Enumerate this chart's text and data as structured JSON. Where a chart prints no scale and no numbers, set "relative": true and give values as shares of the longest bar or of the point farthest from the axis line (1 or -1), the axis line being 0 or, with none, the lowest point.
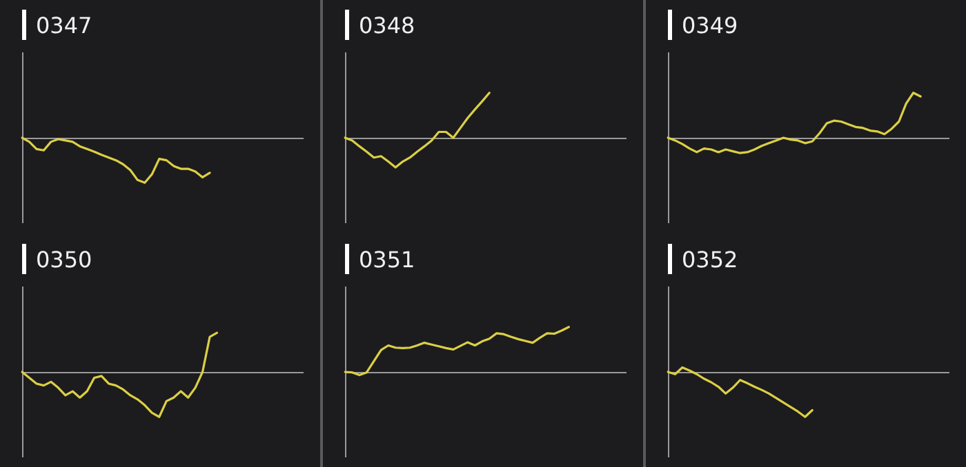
{
  "chart_data": [
    {
      "type": "line",
      "title": "0347",
      "relative": true,
      "marker": "none",
      "categories": [
        null,
        null,
        null,
        null,
        null,
        null,
        null,
        null,
        null,
        null,
        null,
        null,
        null,
        null,
        null,
        null,
        null,
        null,
        null,
        null,
        null,
        null,
        null,
        null,
        null,
        null,
        null,
        null,
        null,
        null,
        null,
        null,
        null,
        null,
        null,
        null,
        null,
        null,
        null,
        null
      ],
      "series": [
        {
          "color": "#dccf45",
          "values": [
            0,
            -0.09,
            -0.25,
            -0.28,
            -0.09,
            -0.03,
            -0.06,
            -0.09,
            -0.19,
            -0.25,
            -0.31,
            -0.38,
            -0.44,
            -0.5,
            -0.59,
            -0.72,
            -0.94,
            -1,
            -0.81,
            -0.47,
            -0.5,
            -0.63,
            -0.69,
            -0.69,
            -0.75,
            -0.88,
            -0.78,
            null,
            null,
            null,
            null,
            null,
            null,
            null,
            null,
            null,
            null,
            null,
            null,
            null
          ]
        }
      ]
    },
    {
      "type": "line",
      "title": "0348",
      "relative": true,
      "marker": "none",
      "categories": [
        null,
        null,
        null,
        null,
        null,
        null,
        null,
        null,
        null,
        null,
        null,
        null,
        null,
        null,
        null,
        null,
        null,
        null,
        null,
        null,
        null,
        null,
        null,
        null,
        null,
        null,
        null,
        null,
        null,
        null,
        null,
        null,
        null,
        null,
        null,
        null,
        null,
        null,
        null,
        null
      ],
      "series": [
        {
          "color": "#dccf45",
          "values": [
            0,
            -0.06,
            -0.19,
            -0.31,
            -0.44,
            -0.41,
            -0.53,
            -0.66,
            -0.53,
            -0.44,
            -0.31,
            -0.19,
            -0.06,
            0.13,
            0.13,
            0,
            0.22,
            0.44,
            0.63,
            0.81,
            1,
            null,
            null,
            null,
            null,
            null,
            null,
            null,
            null,
            null,
            null,
            null,
            null,
            null,
            null,
            null,
            null,
            null,
            null,
            null
          ]
        }
      ]
    },
    {
      "type": "line",
      "title": "0349",
      "relative": true,
      "marker": "none",
      "categories": [
        null,
        null,
        null,
        null,
        null,
        null,
        null,
        null,
        null,
        null,
        null,
        null,
        null,
        null,
        null,
        null,
        null,
        null,
        null,
        null,
        null,
        null,
        null,
        null,
        null,
        null,
        null,
        null,
        null,
        null,
        null,
        null,
        null,
        null,
        null,
        null,
        null,
        null,
        null,
        null
      ],
      "series": [
        {
          "color": "#dccf45",
          "values": [
            0,
            -0.06,
            -0.14,
            -0.24,
            -0.32,
            -0.24,
            -0.26,
            -0.32,
            -0.26,
            -0.3,
            -0.34,
            -0.32,
            -0.26,
            -0.18,
            -0.12,
            -0.06,
            0,
            -0.04,
            -0.06,
            -0.12,
            -0.08,
            0.1,
            0.32,
            0.38,
            0.36,
            0.3,
            0.24,
            0.22,
            0.16,
            0.14,
            0.08,
            0.2,
            0.36,
            0.76,
            1,
            0.92,
            null,
            null,
            null,
            null
          ]
        }
      ]
    },
    {
      "type": "line",
      "title": "0350",
      "relative": true,
      "marker": "none",
      "categories": [
        null,
        null,
        null,
        null,
        null,
        null,
        null,
        null,
        null,
        null,
        null,
        null,
        null,
        null,
        null,
        null,
        null,
        null,
        null,
        null,
        null,
        null,
        null,
        null,
        null,
        null,
        null,
        null,
        null,
        null,
        null,
        null,
        null,
        null,
        null,
        null,
        null,
        null,
        null,
        null
      ],
      "series": [
        {
          "color": "#dccf45",
          "values": [
            0,
            -0.13,
            -0.26,
            -0.3,
            -0.22,
            -0.35,
            -0.52,
            -0.43,
            -0.57,
            -0.43,
            -0.13,
            -0.09,
            -0.26,
            -0.3,
            -0.39,
            -0.52,
            -0.61,
            -0.74,
            -0.91,
            -1,
            -0.65,
            -0.57,
            -0.43,
            -0.57,
            -0.35,
            0,
            0.78,
            0.87,
            null,
            null,
            null,
            null,
            null,
            null,
            null,
            null,
            null,
            null,
            null,
            null
          ]
        }
      ]
    },
    {
      "type": "line",
      "title": "0351",
      "relative": true,
      "marker": "none",
      "categories": [
        null,
        null,
        null,
        null,
        null,
        null,
        null,
        null,
        null,
        null,
        null,
        null,
        null,
        null,
        null,
        null,
        null,
        null,
        null,
        null,
        null,
        null,
        null,
        null,
        null,
        null,
        null,
        null,
        null,
        null,
        null,
        null,
        null,
        null,
        null,
        null,
        null,
        null,
        null,
        null
      ],
      "series": [
        {
          "color": "#dccf45",
          "values": [
            0,
            -0.01,
            -0.07,
            -0.01,
            0.24,
            0.49,
            0.59,
            0.54,
            0.53,
            0.54,
            0.59,
            0.65,
            0.61,
            0.57,
            0.53,
            0.5,
            0.58,
            0.66,
            0.59,
            0.68,
            0.74,
            0.86,
            0.84,
            0.78,
            0.73,
            0.69,
            0.65,
            0.76,
            0.86,
            0.85,
            0.92,
            1,
            null,
            null,
            null,
            null,
            null,
            null,
            null,
            null
          ]
        }
      ]
    },
    {
      "type": "line",
      "title": "0352",
      "relative": true,
      "marker": "none",
      "categories": [
        null,
        null,
        null,
        null,
        null,
        null,
        null,
        null,
        null,
        null,
        null,
        null,
        null,
        null,
        null,
        null,
        null,
        null,
        null,
        null,
        null,
        null,
        null,
        null,
        null,
        null,
        null,
        null,
        null,
        null,
        null,
        null,
        null,
        null,
        null,
        null,
        null,
        null,
        null,
        null
      ],
      "series": [
        {
          "color": "#dccf45",
          "values": [
            0,
            -0.05,
            0.1,
            0.03,
            -0.05,
            -0.15,
            -0.23,
            -0.33,
            -0.48,
            -0.35,
            -0.18,
            -0.25,
            -0.33,
            -0.4,
            -0.48,
            -0.58,
            -0.68,
            -0.78,
            -0.88,
            -1,
            -0.85,
            null,
            null,
            null,
            null,
            null,
            null,
            null,
            null,
            null,
            null,
            null,
            null,
            null,
            null,
            null,
            null,
            null,
            null,
            null
          ]
        }
      ]
    }
  ]
}
